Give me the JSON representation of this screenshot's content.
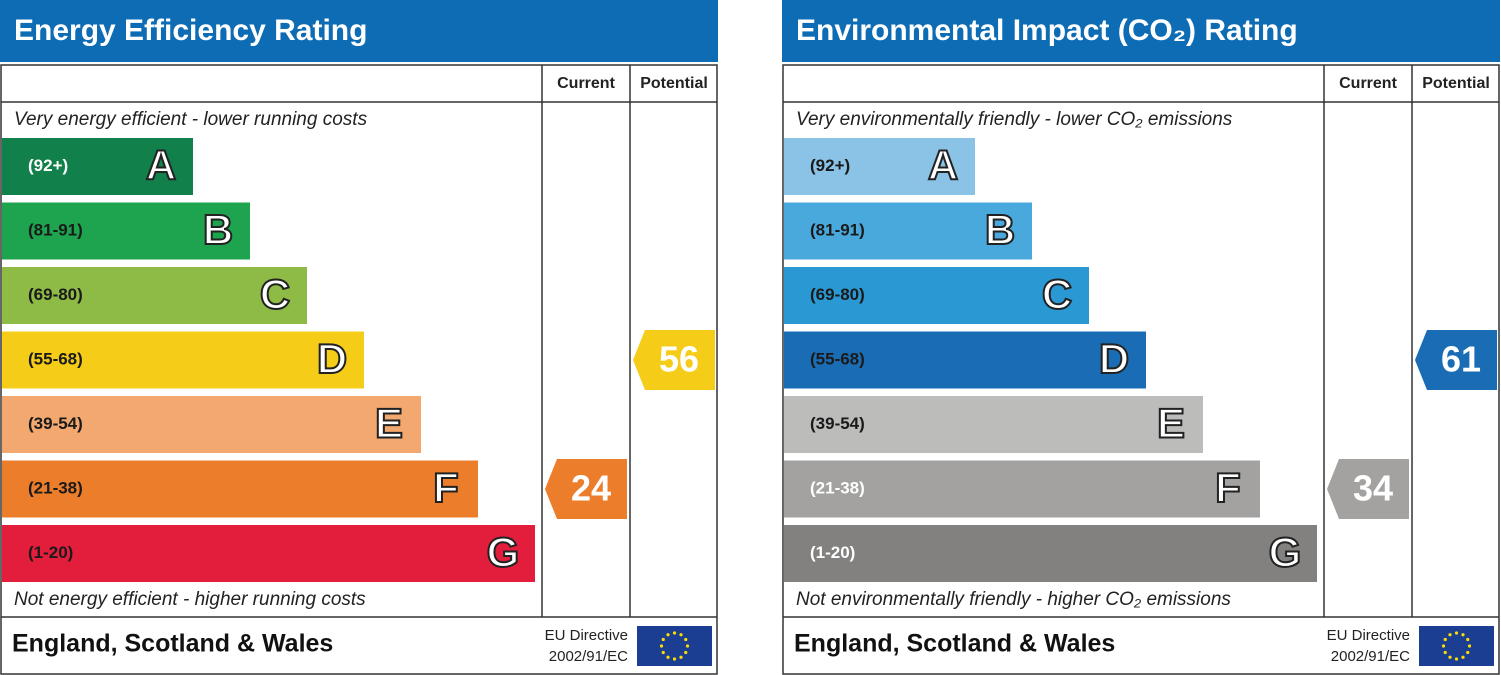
{
  "panels": [
    {
      "title": "Energy Efficiency Rating",
      "columns": [
        "Current",
        "Potential"
      ],
      "top_note": "Very energy efficient - lower running costs",
      "bottom_note": "Not energy efficient - higher running costs",
      "bands": [
        {
          "range": "(92+)",
          "letter": "A",
          "color": "#12804a",
          "text_color": "#ffffff"
        },
        {
          "range": "(81-91)",
          "letter": "B",
          "color": "#1ea34e",
          "text_color": "#1a1a1a"
        },
        {
          "range": "(69-80)",
          "letter": "C",
          "color": "#8dbb45",
          "text_color": "#1a1a1a"
        },
        {
          "range": "(55-68)",
          "letter": "D",
          "color": "#f5cc18",
          "text_color": "#1a1a1a"
        },
        {
          "range": "(39-54)",
          "letter": "E",
          "color": "#f2a86e",
          "text_color": "#1a1a1a"
        },
        {
          "range": "(21-38)",
          "letter": "F",
          "color": "#ec7d2a",
          "text_color": "#1a1a1a"
        },
        {
          "range": "(1-20)",
          "letter": "G",
          "color": "#e31e3d",
          "text_color": "#1a1a1a"
        }
      ],
      "current": 24,
      "potential": 56,
      "footer": "England, Scotland & Wales",
      "directive": [
        "EU Directive",
        "2002/91/EC"
      ]
    },
    {
      "title": "Environmental Impact (CO₂) Rating",
      "columns": [
        "Current",
        "Potential"
      ],
      "top_note": "Very environmentally friendly - lower CO₂ emissions",
      "bottom_note": "Not environmentally friendly - higher CO₂ emissions",
      "bands": [
        {
          "range": "(92+)",
          "letter": "A",
          "color": "#8bc3e7",
          "text_color": "#1a1a1a"
        },
        {
          "range": "(81-91)",
          "letter": "B",
          "color": "#4aa9dc",
          "text_color": "#1a1a1a"
        },
        {
          "range": "(69-80)",
          "letter": "C",
          "color": "#2a98d2",
          "text_color": "#1a1a1a"
        },
        {
          "range": "(55-68)",
          "letter": "D",
          "color": "#1a6db5",
          "text_color": "#1a1a1a"
        },
        {
          "range": "(39-54)",
          "letter": "E",
          "color": "#bcbcbb",
          "text_color": "#1a1a1a"
        },
        {
          "range": "(21-38)",
          "letter": "F",
          "color": "#a3a2a1",
          "text_color": "#ffffff"
        },
        {
          "range": "(1-20)",
          "letter": "G",
          "color": "#828180",
          "text_color": "#ffffff"
        }
      ],
      "current": 34,
      "potential": 61,
      "footer": "England, Scotland & Wales",
      "directive": [
        "EU Directive",
        "2002/91/EC"
      ]
    }
  ]
}
